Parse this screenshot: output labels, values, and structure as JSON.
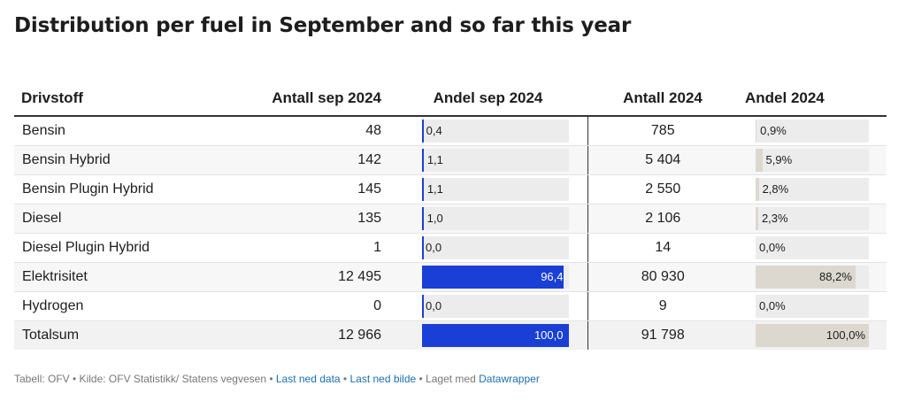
{
  "title": "Distribution per fuel in September and so far this year",
  "headers": {
    "fuel": "Drivstoff",
    "count_sep": "Antall sep 2024",
    "share_sep": "Andel sep 2024",
    "count_year": "Antall 2024",
    "share_year": "Andel 2024"
  },
  "rows": [
    {
      "fuel": "Bensin",
      "count_sep": "48",
      "share_sep": 0.4,
      "share_sep_label": "0,4",
      "count_year": "785",
      "share_year": 0.9,
      "share_year_label": "0,9%"
    },
    {
      "fuel": "Bensin Hybrid",
      "count_sep": "142",
      "share_sep": 1.1,
      "share_sep_label": "1,1",
      "count_year": "5 404",
      "share_year": 5.9,
      "share_year_label": "5,9%"
    },
    {
      "fuel": "Bensin Plugin Hybrid",
      "count_sep": "145",
      "share_sep": 1.1,
      "share_sep_label": "1,1",
      "count_year": "2 550",
      "share_year": 2.8,
      "share_year_label": "2,8%"
    },
    {
      "fuel": "Diesel",
      "count_sep": "135",
      "share_sep": 1.0,
      "share_sep_label": "1,0",
      "count_year": "2 106",
      "share_year": 2.3,
      "share_year_label": "2,3%"
    },
    {
      "fuel": "Diesel Plugin Hybrid",
      "count_sep": "1",
      "share_sep": 0.0,
      "share_sep_label": "0,0",
      "count_year": "14",
      "share_year": 0.0,
      "share_year_label": "0,0%"
    },
    {
      "fuel": "Elektrisitet",
      "count_sep": "12 495",
      "share_sep": 96.4,
      "share_sep_label": "96,4",
      "count_year": "80 930",
      "share_year": 88.2,
      "share_year_label": "88,2%"
    },
    {
      "fuel": "Hydrogen",
      "count_sep": "0",
      "share_sep": 0.0,
      "share_sep_label": "0,0",
      "count_year": "9",
      "share_year": 0.0,
      "share_year_label": "0,0%"
    },
    {
      "fuel": "Totalsum",
      "count_sep": "12 966",
      "share_sep": 100.0,
      "share_sep_label": "100,0",
      "count_year": "91 798",
      "share_year": 100.0,
      "share_year_label": "100,0%"
    }
  ],
  "footer": {
    "prefix": "Tabell: OFV • Kilde: OFV Statistikk/ Statens vegvesen • ",
    "link_data": "Last ned data",
    "sep1": " • ",
    "link_image": "Last ned bilde",
    "sep2": " • Laget med ",
    "link_dw": "Datawrapper"
  },
  "colors": {
    "bar_sep": "#1a3fd6",
    "bar_year": "#dcd8d0",
    "track": "#ececec",
    "link": "#1a6fb5"
  }
}
